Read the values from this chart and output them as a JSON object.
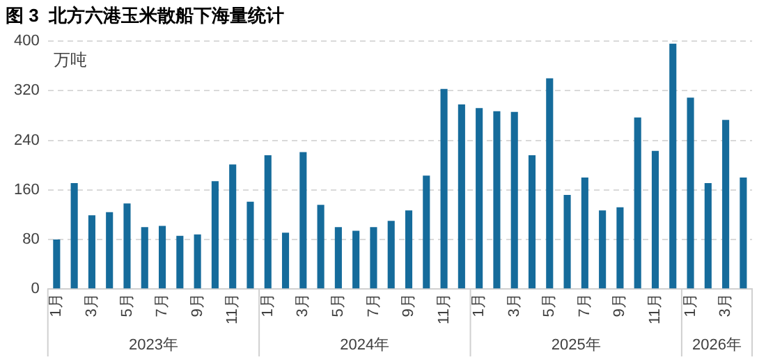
{
  "chart_data": {
    "type": "bar",
    "title": "图 3  北方六港玉米散船下海量统计",
    "ylabel": "万吨",
    "categories": [
      "1月",
      null,
      "3月",
      null,
      "5月",
      null,
      "7月",
      null,
      "9月",
      null,
      "11月",
      null,
      "1月",
      null,
      "3月",
      null,
      "5月",
      null,
      "7月",
      null,
      "9月",
      null,
      "11月",
      null,
      "1月",
      null,
      "3月",
      null,
      "5月",
      null,
      "7月",
      null,
      "9月",
      null,
      "11月",
      null,
      "1月",
      null,
      "3月",
      null
    ],
    "values": [
      80,
      171,
      119,
      124,
      138,
      100,
      102,
      86,
      88,
      174,
      201,
      141,
      216,
      91,
      221,
      136,
      100,
      94,
      100,
      110,
      127,
      183,
      323,
      298,
      292,
      287,
      286,
      216,
      340,
      152,
      180,
      127,
      132,
      277,
      223,
      396,
      309,
      171,
      273,
      180
    ],
    "color": "#156b9b",
    "ylim": [
      0,
      400
    ],
    "yticks": [
      0,
      80,
      160,
      240,
      320,
      400
    ],
    "grid": "y",
    "legend": false,
    "annotations": [
      "2023年",
      "2024年",
      "2025年",
      "2026年"
    ]
  }
}
